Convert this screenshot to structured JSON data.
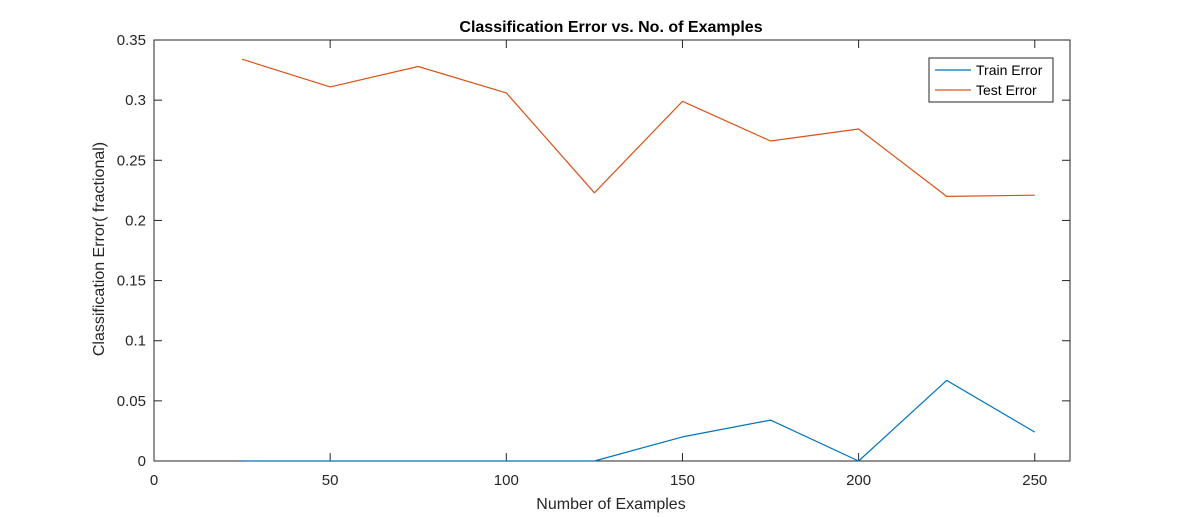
{
  "chart_data": {
    "type": "line",
    "title": "Classification Error vs. No. of Examples",
    "xlabel": "Number of Examples",
    "ylabel": "Classification Error( fractional)",
    "xlim": [
      0,
      260
    ],
    "ylim": [
      0,
      0.35
    ],
    "xticks": [
      0,
      50,
      100,
      150,
      200,
      250
    ],
    "xtick_labels": [
      "0",
      "50",
      "100",
      "150",
      "200",
      "250"
    ],
    "yticks": [
      0,
      0.05,
      0.1,
      0.15,
      0.2,
      0.25,
      0.3,
      0.35
    ],
    "ytick_labels": [
      "0",
      "0.05",
      "0.1",
      "0.15",
      "0.2",
      "0.25",
      "0.3",
      "0.35"
    ],
    "grid": false,
    "legend_position": "top-right",
    "x": [
      25,
      50,
      75,
      100,
      125,
      150,
      175,
      200,
      225,
      250
    ],
    "series": [
      {
        "name": "Train Error",
        "color": "#0072BD",
        "values": [
          0,
          0,
          0,
          0,
          0,
          0.02,
          0.034,
          0,
          0.067,
          0.024
        ]
      },
      {
        "name": "Test Error",
        "color": "#D95319",
        "values": [
          0.334,
          0.311,
          0.328,
          0.306,
          0.223,
          0.299,
          0.266,
          0.276,
          0.22,
          0.221
        ]
      }
    ]
  }
}
